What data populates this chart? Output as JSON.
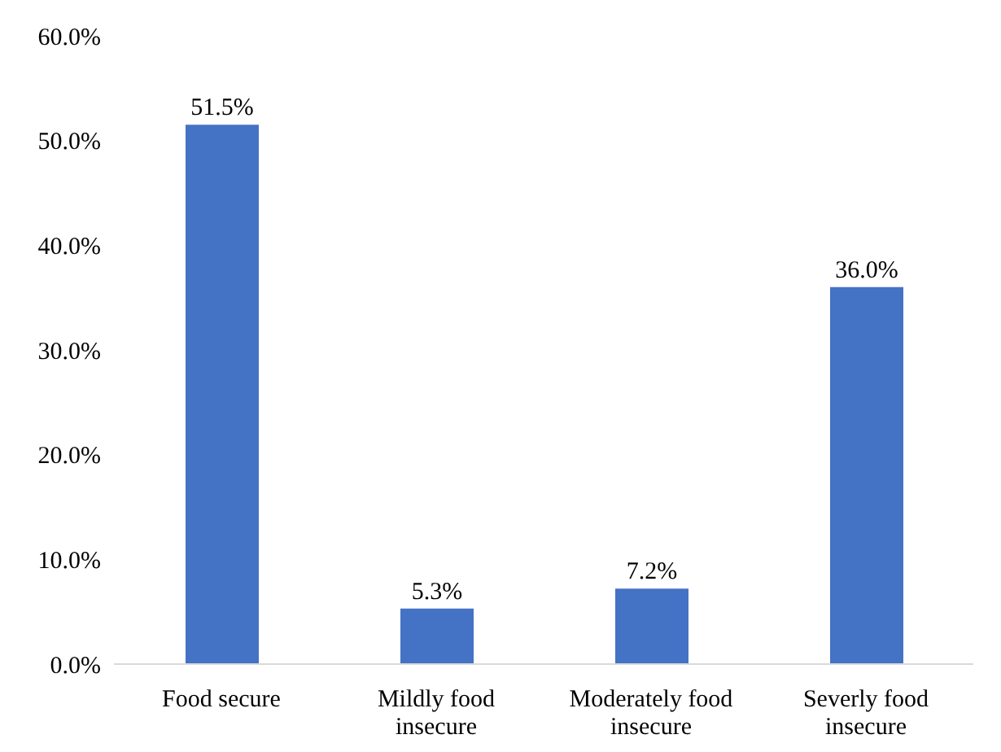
{
  "chart_data": {
    "type": "bar",
    "categories": [
      "Food secure",
      "Mildly food insecure",
      "Moderately food insecure",
      "Severly food insecure"
    ],
    "values": [
      51.5,
      5.3,
      7.2,
      36.0
    ],
    "value_labels": [
      "51.5%",
      "5.3%",
      "7.2%",
      "36.0%"
    ],
    "color": "#4472c4",
    "ylim": [
      0,
      60
    ],
    "yticks": [
      {
        "value": 0,
        "label": "0.0%"
      },
      {
        "value": 10,
        "label": "10.0%"
      },
      {
        "value": 20,
        "label": "20.0%"
      },
      {
        "value": 30,
        "label": "30.0%"
      },
      {
        "value": 40,
        "label": "40.0%"
      },
      {
        "value": 50,
        "label": "50.0%"
      },
      {
        "value": 60,
        "label": "60.0%"
      }
    ],
    "grid": false,
    "legend": false
  }
}
